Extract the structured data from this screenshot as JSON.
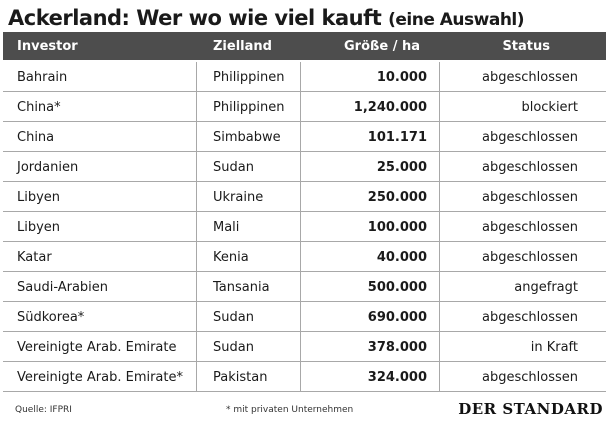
{
  "title": {
    "main": "Ackerland: Wer wo wie viel kauft",
    "sub": "(eine Auswahl)"
  },
  "columns": {
    "investor": "Investor",
    "target": "Zielland",
    "size": "Größe / ha",
    "status": "Status"
  },
  "rows": [
    {
      "investor": "Bahrain",
      "target": "Philippinen",
      "size": "10.000",
      "status": "abgeschlossen"
    },
    {
      "investor": "China*",
      "target": "Philippinen",
      "size": "1,240.000",
      "status": "blockiert"
    },
    {
      "investor": "China",
      "target": "Simbabwe",
      "size": "101.171",
      "status": "abgeschlossen"
    },
    {
      "investor": "Jordanien",
      "target": "Sudan",
      "size": "25.000",
      "status": "abgeschlossen"
    },
    {
      "investor": "Libyen",
      "target": "Ukraine",
      "size": "250.000",
      "status": "abgeschlossen"
    },
    {
      "investor": "Libyen",
      "target": "Mali",
      "size": "100.000",
      "status": "abgeschlossen"
    },
    {
      "investor": "Katar",
      "target": "Kenia",
      "size": "40.000",
      "status": "abgeschlossen"
    },
    {
      "investor": "Saudi-Arabien",
      "target": "Tansania",
      "size": "500.000",
      "status": "angefragt"
    },
    {
      "investor": "Südkorea*",
      "target": "Sudan",
      "size": "690.000",
      "status": "abgeschlossen"
    },
    {
      "investor": "Vereinigte Arab. Emirate",
      "target": "Sudan",
      "size": "378.000",
      "status": "in Kraft"
    },
    {
      "investor": "Vereinigte Arab. Emirate*",
      "target": "Pakistan",
      "size": "324.000",
      "status": "abgeschlossen"
    }
  ],
  "footer": {
    "source": "Quelle: IFPRI",
    "note": "* mit privaten Unternehmen",
    "brand": "DER STANDARD"
  },
  "colors": {
    "header_bg": "#4d4d4d",
    "header_text": "#ffffff",
    "grid_line": "#a8a8a8"
  }
}
